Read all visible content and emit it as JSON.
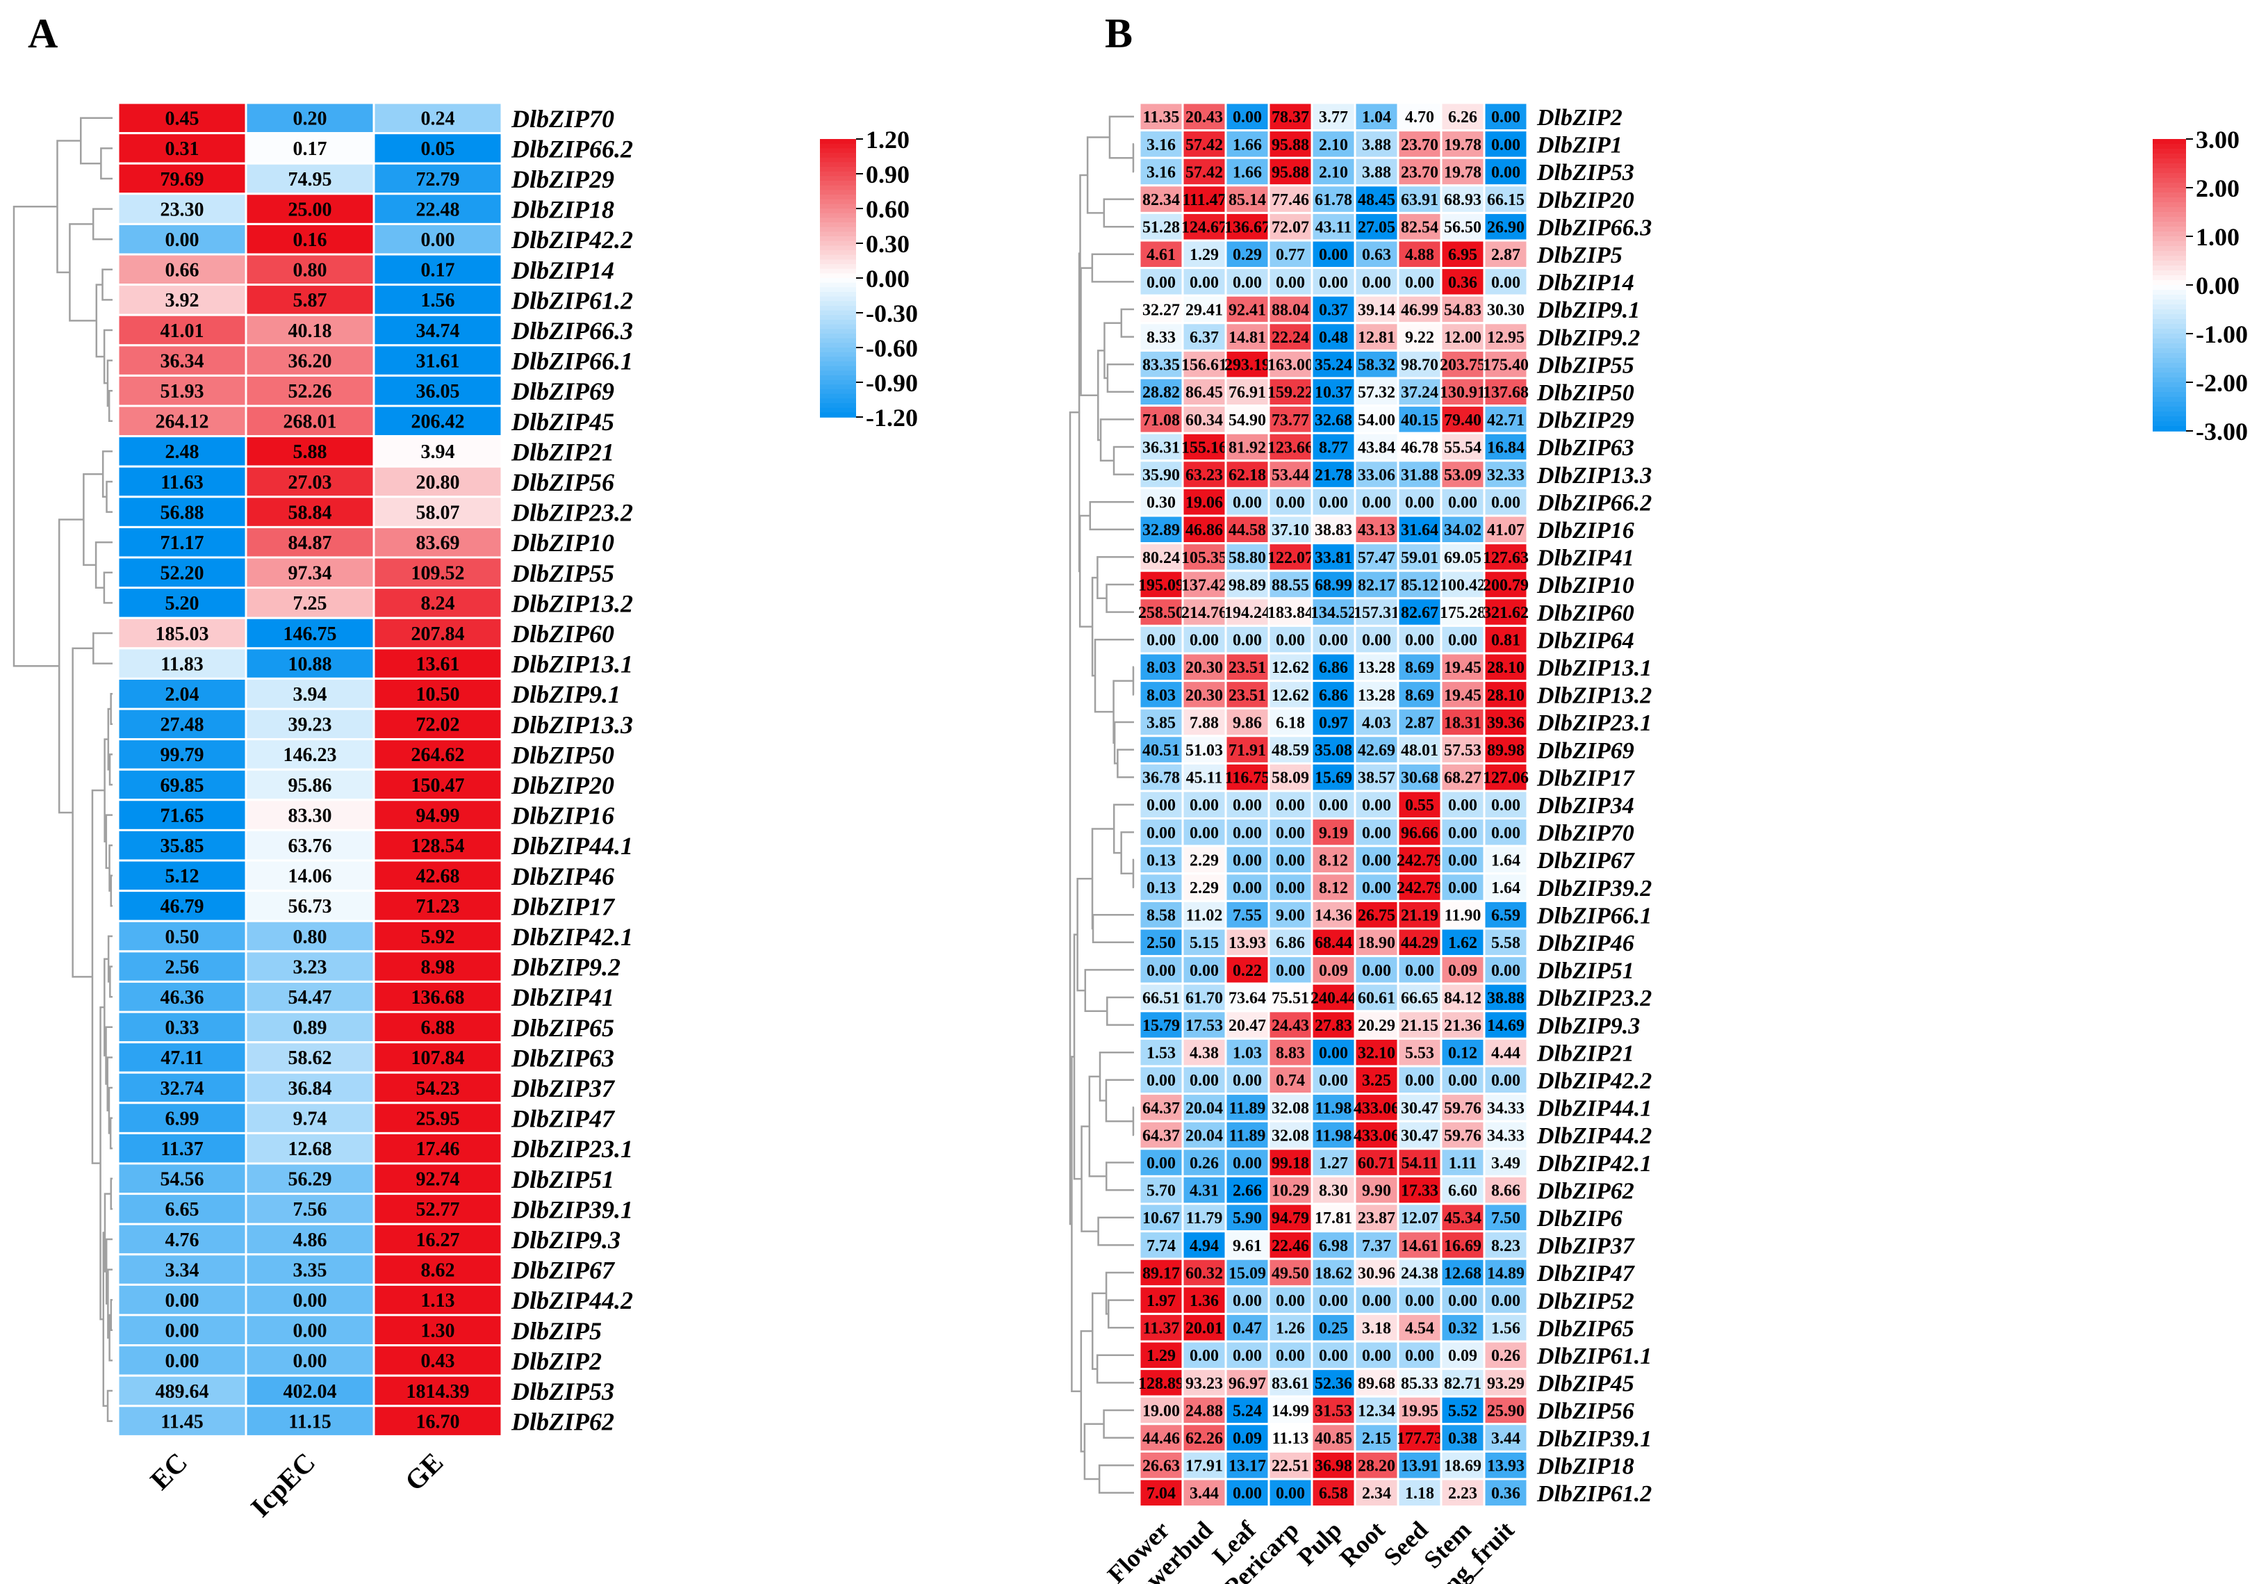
{
  "chart_data": [
    {
      "type": "heatmap",
      "panel_label": "A",
      "columns": [
        "EC",
        "IcpEC",
        "GE"
      ],
      "rows": [
        "DlbZIP70",
        "DlbZIP66.2",
        "DlbZIP29",
        "DlbZIP18",
        "DlbZIP42.2",
        "DlbZIP14",
        "DlbZIP61.2",
        "DlbZIP66.3",
        "DlbZIP66.1",
        "DlbZIP69",
        "DlbZIP45",
        "DlbZIP21",
        "DlbZIP56",
        "DlbZIP23.2",
        "DlbZIP10",
        "DlbZIP55",
        "DlbZIP13.2",
        "DlbZIP60",
        "DlbZIP13.1",
        "DlbZIP9.1",
        "DlbZIP13.3",
        "DlbZIP50",
        "DlbZIP20",
        "DlbZIP16",
        "DlbZIP44.1",
        "DlbZIP46",
        "DlbZIP17",
        "DlbZIP42.1",
        "DlbZIP9.2",
        "DlbZIP41",
        "DlbZIP65",
        "DlbZIP63",
        "DlbZIP37",
        "DlbZIP47",
        "DlbZIP23.1",
        "DlbZIP51",
        "DlbZIP39.1",
        "DlbZIP9.3",
        "DlbZIP67",
        "DlbZIP44.2",
        "DlbZIP5",
        "DlbZIP2",
        "DlbZIP53",
        "DlbZIP62"
      ],
      "values": [
        [
          "0.45",
          "0.20",
          "0.24"
        ],
        [
          "0.31",
          "0.17",
          "0.05"
        ],
        [
          "79.69",
          "74.95",
          "72.79"
        ],
        [
          "23.30",
          "25.00",
          "22.48"
        ],
        [
          "0.00",
          "0.16",
          "0.00"
        ],
        [
          "0.66",
          "0.80",
          "0.17"
        ],
        [
          "3.92",
          "5.87",
          "1.56"
        ],
        [
          "41.01",
          "40.18",
          "34.74"
        ],
        [
          "36.34",
          "36.20",
          "31.61"
        ],
        [
          "51.93",
          "52.26",
          "36.05"
        ],
        [
          "264.12",
          "268.01",
          "206.42"
        ],
        [
          "2.48",
          "5.88",
          "3.94"
        ],
        [
          "11.63",
          "27.03",
          "20.80"
        ],
        [
          "56.88",
          "58.84",
          "58.07"
        ],
        [
          "71.17",
          "84.87",
          "83.69"
        ],
        [
          "52.20",
          "97.34",
          "109.52"
        ],
        [
          "5.20",
          "7.25",
          "8.24"
        ],
        [
          "185.03",
          "146.75",
          "207.84"
        ],
        [
          "11.83",
          "10.88",
          "13.61"
        ],
        [
          "2.04",
          "3.94",
          "10.50"
        ],
        [
          "27.48",
          "39.23",
          "72.02"
        ],
        [
          "99.79",
          "146.23",
          "264.62"
        ],
        [
          "69.85",
          "95.86",
          "150.47"
        ],
        [
          "71.65",
          "83.30",
          "94.99"
        ],
        [
          "35.85",
          "63.76",
          "128.54"
        ],
        [
          "5.12",
          "14.06",
          "42.68"
        ],
        [
          "46.79",
          "56.73",
          "71.23"
        ],
        [
          "0.50",
          "0.80",
          "5.92"
        ],
        [
          "2.56",
          "3.23",
          "8.98"
        ],
        [
          "46.36",
          "54.47",
          "136.68"
        ],
        [
          "0.33",
          "0.89",
          "6.88"
        ],
        [
          "47.11",
          "58.62",
          "107.84"
        ],
        [
          "32.74",
          "36.84",
          "54.23"
        ],
        [
          "6.99",
          "9.74",
          "25.95"
        ],
        [
          "11.37",
          "12.68",
          "17.46"
        ],
        [
          "54.56",
          "56.29",
          "92.74"
        ],
        [
          "6.65",
          "7.56",
          "52.77"
        ],
        [
          "4.76",
          "4.86",
          "16.27"
        ],
        [
          "3.34",
          "3.35",
          "8.62"
        ],
        [
          "0.00",
          "0.00",
          "1.13"
        ],
        [
          "0.00",
          "0.00",
          "1.30"
        ],
        [
          "0.00",
          "0.00",
          "0.43"
        ],
        [
          "489.64",
          "402.04",
          "1814.39"
        ],
        [
          "11.45",
          "11.15",
          "16.70"
        ]
      ],
      "legend": {
        "ticks": [
          "1.20",
          "0.90",
          "0.60",
          "0.30",
          "0.00",
          "-0.30",
          "-0.60",
          "-0.90",
          "-1.20"
        ],
        "min": -1.2,
        "max": 1.2
      }
    },
    {
      "type": "heatmap",
      "panel_label": "B",
      "columns": [
        "Flower",
        "Flowerbud",
        "Leaf",
        "Pericarp",
        "Pulp",
        "Root",
        "Seed",
        "Stem",
        "Young_fruit"
      ],
      "rows": [
        "DlbZIP2",
        "DlbZIP1",
        "DlbZIP53",
        "DlbZIP20",
        "DlbZIP66.3",
        "DlbZIP5",
        "DlbZIP14",
        "DlbZIP9.1",
        "DlbZIP9.2",
        "DlbZIP55",
        "DlbZIP50",
        "DlbZIP29",
        "DlbZIP63",
        "DlbZIP13.3",
        "DlbZIP66.2",
        "DlbZIP16",
        "DlbZIP41",
        "DlbZIP10",
        "DlbZIP60",
        "DlbZIP64",
        "DlbZIP13.1",
        "DlbZIP13.2",
        "DlbZIP23.1",
        "DlbZIP69",
        "DlbZIP17",
        "DlbZIP34",
        "DlbZIP70",
        "DlbZIP67",
        "DlbZIP39.2",
        "DlbZIP66.1",
        "DlbZIP46",
        "DlbZIP51",
        "DlbZIP23.2",
        "DlbZIP9.3",
        "DlbZIP21",
        "DlbZIP42.2",
        "DlbZIP44.1",
        "DlbZIP44.2",
        "DlbZIP42.1",
        "DlbZIP62",
        "DlbZIP6",
        "DlbZIP37",
        "DlbZIP47",
        "DlbZIP52",
        "DlbZIP65",
        "DlbZIP61.1",
        "DlbZIP45",
        "DlbZIP56",
        "DlbZIP39.1",
        "DlbZIP18",
        "DlbZIP61.2"
      ],
      "values": [
        [
          "11.35",
          "20.43",
          "0.00",
          "78.37",
          "3.77",
          "1.04",
          "4.70",
          "6.26",
          "0.00"
        ],
        [
          "3.16",
          "57.42",
          "1.66",
          "95.88",
          "2.10",
          "3.88",
          "23.70",
          "19.78",
          "0.00"
        ],
        [
          "3.16",
          "57.42",
          "1.66",
          "95.88",
          "2.10",
          "3.88",
          "23.70",
          "19.78",
          "0.00"
        ],
        [
          "82.34",
          "111.47",
          "85.14",
          "77.46",
          "61.78",
          "48.45",
          "63.91",
          "68.93",
          "66.15"
        ],
        [
          "51.28",
          "124.67",
          "136.67",
          "72.07",
          "43.11",
          "27.05",
          "82.54",
          "56.50",
          "26.90"
        ],
        [
          "4.61",
          "1.29",
          "0.29",
          "0.77",
          "0.00",
          "0.63",
          "4.88",
          "6.95",
          "2.87"
        ],
        [
          "0.00",
          "0.00",
          "0.00",
          "0.00",
          "0.00",
          "0.00",
          "0.00",
          "0.36",
          "0.00"
        ],
        [
          "32.27",
          "29.41",
          "92.41",
          "88.04",
          "0.37",
          "39.14",
          "46.99",
          "54.83",
          "30.30"
        ],
        [
          "8.33",
          "6.37",
          "14.81",
          "22.24",
          "0.48",
          "12.81",
          "9.22",
          "12.00",
          "12.95"
        ],
        [
          "83.35",
          "156.61",
          "293.19",
          "163.00",
          "35.24",
          "58.32",
          "98.70",
          "203.75",
          "175.40"
        ],
        [
          "28.82",
          "86.45",
          "76.91",
          "159.22",
          "10.37",
          "57.32",
          "37.24",
          "130.91",
          "137.68"
        ],
        [
          "71.08",
          "60.34",
          "54.90",
          "73.77",
          "32.68",
          "54.00",
          "40.15",
          "79.40",
          "42.71"
        ],
        [
          "36.31",
          "155.16",
          "81.92",
          "123.66",
          "8.77",
          "43.84",
          "46.78",
          "55.54",
          "16.84"
        ],
        [
          "35.90",
          "63.23",
          "62.18",
          "53.44",
          "21.78",
          "33.06",
          "31.88",
          "53.09",
          "32.33"
        ],
        [
          "0.30",
          "19.06",
          "0.00",
          "0.00",
          "0.00",
          "0.00",
          "0.00",
          "0.00",
          "0.00"
        ],
        [
          "32.89",
          "46.86",
          "44.58",
          "37.10",
          "38.83",
          "43.13",
          "31.64",
          "34.02",
          "41.07"
        ],
        [
          "80.24",
          "105.35",
          "58.80",
          "122.07",
          "33.81",
          "57.47",
          "59.01",
          "69.05",
          "127.63"
        ],
        [
          "195.09",
          "137.42",
          "98.89",
          "88.55",
          "68.99",
          "82.17",
          "85.12",
          "100.42",
          "200.79"
        ],
        [
          "258.50",
          "214.76",
          "194.24",
          "183.84",
          "134.52",
          "157.31",
          "82.67",
          "175.28",
          "321.62"
        ],
        [
          "0.00",
          "0.00",
          "0.00",
          "0.00",
          "0.00",
          "0.00",
          "0.00",
          "0.00",
          "0.81"
        ],
        [
          "8.03",
          "20.30",
          "23.51",
          "12.62",
          "6.86",
          "13.28",
          "8.69",
          "19.45",
          "28.10"
        ],
        [
          "8.03",
          "20.30",
          "23.51",
          "12.62",
          "6.86",
          "13.28",
          "8.69",
          "19.45",
          "28.10"
        ],
        [
          "3.85",
          "7.88",
          "9.86",
          "6.18",
          "0.97",
          "4.03",
          "2.87",
          "18.31",
          "39.36"
        ],
        [
          "40.51",
          "51.03",
          "71.91",
          "48.59",
          "35.08",
          "42.69",
          "48.01",
          "57.53",
          "89.98"
        ],
        [
          "36.78",
          "45.11",
          "116.75",
          "58.09",
          "15.69",
          "38.57",
          "30.68",
          "68.27",
          "127.06"
        ],
        [
          "0.00",
          "0.00",
          "0.00",
          "0.00",
          "0.00",
          "0.00",
          "0.55",
          "0.00",
          "0.00"
        ],
        [
          "0.00",
          "0.00",
          "0.00",
          "0.00",
          "9.19",
          "0.00",
          "96.66",
          "0.00",
          "0.00"
        ],
        [
          "0.13",
          "2.29",
          "0.00",
          "0.00",
          "8.12",
          "0.00",
          "242.79",
          "0.00",
          "1.64"
        ],
        [
          "0.13",
          "2.29",
          "0.00",
          "0.00",
          "8.12",
          "0.00",
          "242.79",
          "0.00",
          "1.64"
        ],
        [
          "8.58",
          "11.02",
          "7.55",
          "9.00",
          "14.36",
          "26.75",
          "21.19",
          "11.90",
          "6.59"
        ],
        [
          "2.50",
          "5.15",
          "13.93",
          "6.86",
          "68.44",
          "18.90",
          "44.29",
          "1.62",
          "5.58"
        ],
        [
          "0.00",
          "0.00",
          "0.22",
          "0.00",
          "0.09",
          "0.00",
          "0.00",
          "0.09",
          "0.00"
        ],
        [
          "66.51",
          "61.70",
          "73.64",
          "75.51",
          "240.44",
          "60.61",
          "66.65",
          "84.12",
          "38.88"
        ],
        [
          "15.79",
          "17.53",
          "20.47",
          "24.43",
          "27.83",
          "20.29",
          "21.15",
          "21.36",
          "14.69"
        ],
        [
          "1.53",
          "4.38",
          "1.03",
          "8.83",
          "0.00",
          "32.10",
          "5.53",
          "0.12",
          "4.44"
        ],
        [
          "0.00",
          "0.00",
          "0.00",
          "0.74",
          "0.00",
          "3.25",
          "0.00",
          "0.00",
          "0.00"
        ],
        [
          "64.37",
          "20.04",
          "11.89",
          "32.08",
          "11.98",
          "433.06",
          "30.47",
          "59.76",
          "34.33"
        ],
        [
          "64.37",
          "20.04",
          "11.89",
          "32.08",
          "11.98",
          "433.06",
          "30.47",
          "59.76",
          "34.33"
        ],
        [
          "0.00",
          "0.26",
          "0.00",
          "99.18",
          "1.27",
          "60.71",
          "54.11",
          "1.11",
          "3.49"
        ],
        [
          "5.70",
          "4.31",
          "2.66",
          "10.29",
          "8.30",
          "9.90",
          "17.33",
          "6.60",
          "8.66"
        ],
        [
          "10.67",
          "11.79",
          "5.90",
          "94.79",
          "17.81",
          "23.87",
          "12.07",
          "45.34",
          "7.50"
        ],
        [
          "7.74",
          "4.94",
          "9.61",
          "22.46",
          "6.98",
          "7.37",
          "14.61",
          "16.69",
          "8.23"
        ],
        [
          "89.17",
          "60.32",
          "15.09",
          "49.50",
          "18.62",
          "30.96",
          "24.38",
          "12.68",
          "14.89"
        ],
        [
          "1.97",
          "1.36",
          "0.00",
          "0.00",
          "0.00",
          "0.00",
          "0.00",
          "0.00",
          "0.00"
        ],
        [
          "11.37",
          "20.01",
          "0.47",
          "1.26",
          "0.25",
          "3.18",
          "4.54",
          "0.32",
          "1.56"
        ],
        [
          "1.29",
          "0.00",
          "0.00",
          "0.00",
          "0.00",
          "0.00",
          "0.00",
          "0.09",
          "0.26"
        ],
        [
          "128.89",
          "93.23",
          "96.97",
          "83.61",
          "52.36",
          "89.68",
          "85.33",
          "82.71",
          "93.29"
        ],
        [
          "19.00",
          "24.88",
          "5.24",
          "14.99",
          "31.53",
          "12.34",
          "19.95",
          "5.52",
          "25.90"
        ],
        [
          "44.46",
          "62.26",
          "0.09",
          "11.13",
          "40.85",
          "2.15",
          "177.73",
          "0.38",
          "3.44"
        ],
        [
          "26.63",
          "17.91",
          "13.17",
          "22.51",
          "36.98",
          "28.20",
          "13.91",
          "18.69",
          "13.93"
        ],
        [
          "7.04",
          "3.44",
          "0.00",
          "0.00",
          "6.58",
          "2.34",
          "1.18",
          "2.23",
          "0.36"
        ]
      ],
      "legend": {
        "ticks": [
          "3.00",
          "2.00",
          "1.00",
          "0.00",
          "-1.00",
          "-2.00",
          "-3.00"
        ],
        "min": -3,
        "max": 3
      }
    }
  ]
}
